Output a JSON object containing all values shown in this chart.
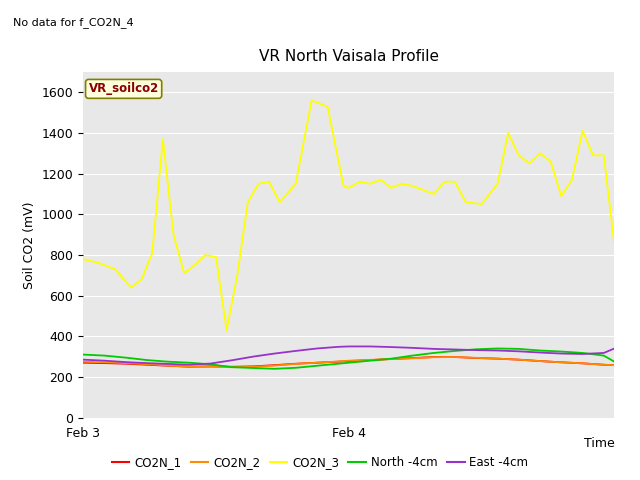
{
  "title": "VR North Vaisala Profile",
  "no_data_text": "No data for f_CO2N_4",
  "ylabel": "Soil CO2 (mV)",
  "xlabel": "Time",
  "ylim": [
    0,
    1700
  ],
  "yticks": [
    0,
    200,
    400,
    600,
    800,
    1000,
    1200,
    1400,
    1600
  ],
  "bg_color": "#e8e8e8",
  "legend_box_label": "VR_soilco2",
  "x_tick_labels": [
    "Feb 3",
    "Feb 4"
  ],
  "x_tick_positions": [
    0.0,
    0.5
  ],
  "series": {
    "CO2N_1": {
      "color": "#ff0000",
      "label": "CO2N_1",
      "x": [
        0.0,
        0.04,
        0.08,
        0.12,
        0.16,
        0.2,
        0.24,
        0.28,
        0.32,
        0.36,
        0.4,
        0.44,
        0.48,
        0.5,
        0.54,
        0.58,
        0.62,
        0.66,
        0.7,
        0.74,
        0.78,
        0.82,
        0.86,
        0.9,
        0.94,
        0.98,
        1.0
      ],
      "y": [
        270,
        268,
        265,
        260,
        255,
        250,
        252,
        250,
        252,
        258,
        265,
        270,
        275,
        278,
        283,
        288,
        293,
        298,
        298,
        293,
        290,
        285,
        278,
        272,
        267,
        260,
        258
      ]
    },
    "CO2N_2": {
      "color": "#ff8c00",
      "label": "CO2N_2",
      "x": [
        0.0,
        0.04,
        0.08,
        0.12,
        0.16,
        0.2,
        0.24,
        0.28,
        0.32,
        0.36,
        0.4,
        0.44,
        0.48,
        0.5,
        0.54,
        0.58,
        0.62,
        0.66,
        0.7,
        0.74,
        0.78,
        0.82,
        0.86,
        0.9,
        0.94,
        0.98,
        1.0
      ],
      "y": [
        275,
        272,
        268,
        263,
        256,
        250,
        250,
        248,
        250,
        256,
        264,
        270,
        276,
        280,
        284,
        288,
        292,
        297,
        298,
        294,
        290,
        285,
        278,
        272,
        267,
        260,
        258
      ]
    },
    "CO2N_3": {
      "color": "#ffff00",
      "label": "CO2N_3",
      "x": [
        0.0,
        0.03,
        0.06,
        0.09,
        0.11,
        0.13,
        0.15,
        0.17,
        0.19,
        0.21,
        0.23,
        0.25,
        0.27,
        0.29,
        0.31,
        0.33,
        0.35,
        0.37,
        0.4,
        0.43,
        0.46,
        0.49,
        0.5,
        0.52,
        0.54,
        0.56,
        0.58,
        0.6,
        0.62,
        0.64,
        0.66,
        0.68,
        0.7,
        0.72,
        0.75,
        0.78,
        0.8,
        0.82,
        0.84,
        0.86,
        0.88,
        0.9,
        0.92,
        0.94,
        0.96,
        0.98,
        1.0
      ],
      "y": [
        780,
        760,
        730,
        640,
        680,
        810,
        1370,
        900,
        710,
        750,
        800,
        790,
        430,
        700,
        1060,
        1150,
        1160,
        1060,
        1150,
        1560,
        1530,
        1140,
        1130,
        1160,
        1150,
        1170,
        1130,
        1150,
        1140,
        1120,
        1100,
        1160,
        1160,
        1060,
        1050,
        1150,
        1400,
        1290,
        1250,
        1300,
        1260,
        1090,
        1170,
        1410,
        1290,
        1290,
        850
      ]
    },
    "North_4cm": {
      "color": "#00cc00",
      "label": "North -4cm",
      "x": [
        0.0,
        0.04,
        0.08,
        0.12,
        0.16,
        0.2,
        0.24,
        0.28,
        0.32,
        0.36,
        0.4,
        0.44,
        0.48,
        0.5,
        0.54,
        0.58,
        0.62,
        0.66,
        0.7,
        0.74,
        0.78,
        0.82,
        0.86,
        0.9,
        0.94,
        0.98,
        1.0
      ],
      "y": [
        310,
        305,
        295,
        283,
        275,
        270,
        262,
        248,
        244,
        240,
        245,
        255,
        265,
        270,
        280,
        290,
        305,
        318,
        328,
        336,
        340,
        338,
        330,
        325,
        318,
        305,
        275
      ]
    },
    "East_4cm": {
      "color": "#9932cc",
      "label": "East -4cm",
      "x": [
        0.0,
        0.04,
        0.08,
        0.12,
        0.16,
        0.2,
        0.24,
        0.28,
        0.32,
        0.36,
        0.4,
        0.44,
        0.48,
        0.5,
        0.54,
        0.58,
        0.62,
        0.66,
        0.7,
        0.74,
        0.78,
        0.82,
        0.86,
        0.9,
        0.94,
        0.98,
        1.0
      ],
      "y": [
        285,
        280,
        273,
        268,
        264,
        260,
        266,
        282,
        300,
        315,
        328,
        340,
        348,
        350,
        350,
        347,
        343,
        338,
        335,
        332,
        330,
        326,
        320,
        315,
        313,
        318,
        340
      ]
    }
  }
}
